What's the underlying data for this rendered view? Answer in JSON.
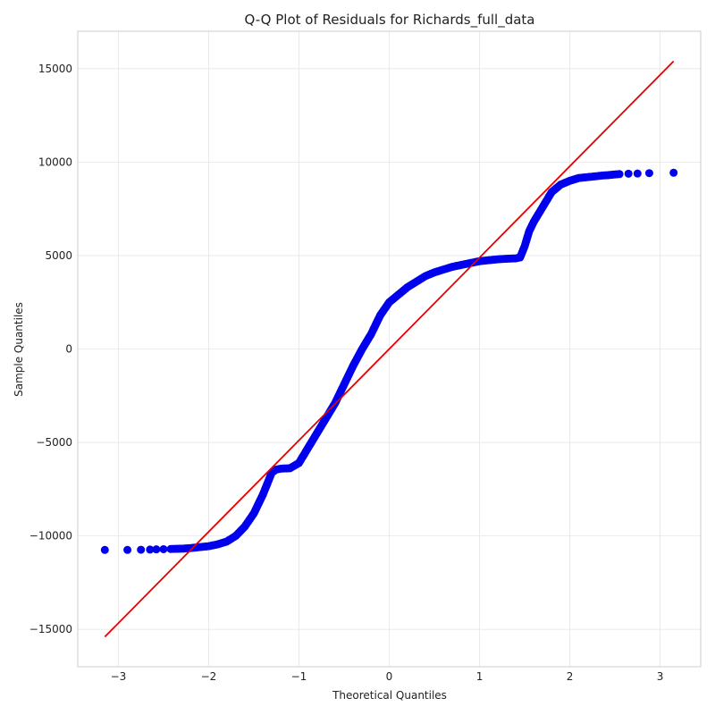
{
  "chart_data": {
    "type": "scatter",
    "title": "Q-Q Plot of Residuals for Richards_full_data",
    "xlabel": "Theoretical Quantiles",
    "ylabel": "Sample Quantiles",
    "xlim": [
      -3.45,
      3.45
    ],
    "ylim": [
      -17000,
      17000
    ],
    "xticks": [
      -3,
      -2,
      -1,
      0,
      1,
      2,
      3
    ],
    "xtick_labels": [
      "−3",
      "−2",
      "−1",
      "0",
      "1",
      "2",
      "3"
    ],
    "yticks": [
      -15000,
      -10000,
      -5000,
      0,
      5000,
      10000,
      15000
    ],
    "ytick_labels": [
      "−15000",
      "−10000",
      "−5000",
      "0",
      "5000",
      "10000",
      "15000"
    ],
    "grid": true,
    "series": [
      {
        "kind": "points",
        "color": "#0000ee",
        "x": [
          -3.15,
          -2.9,
          -2.75,
          -2.65,
          -2.58,
          -2.5,
          -2.42,
          -2.35,
          -2.28,
          -2.2,
          -2.1,
          -2.0,
          -1.9,
          -1.8,
          -1.7,
          -1.6,
          -1.5,
          -1.4,
          -1.35,
          -1.3,
          -1.25,
          -1.2,
          -1.1,
          -1.0,
          -0.9,
          -0.8,
          -0.7,
          -0.6,
          -0.5,
          -0.4,
          -0.3,
          -0.2,
          -0.1,
          0.0,
          0.1,
          0.2,
          0.3,
          0.4,
          0.5,
          0.6,
          0.7,
          0.8,
          0.9,
          1.0,
          1.1,
          1.2,
          1.3,
          1.35,
          1.4,
          1.45,
          1.5,
          1.55,
          1.6,
          1.7,
          1.8,
          1.9,
          2.0,
          2.1,
          2.2,
          2.3,
          2.35,
          2.42,
          2.48,
          2.55,
          2.65,
          2.75,
          2.88,
          3.15
        ],
        "y": [
          -10750,
          -10750,
          -10740,
          -10730,
          -10720,
          -10710,
          -10700,
          -10690,
          -10680,
          -10650,
          -10600,
          -10550,
          -10450,
          -10300,
          -10000,
          -9500,
          -8800,
          -7800,
          -7200,
          -6600,
          -6450,
          -6400,
          -6380,
          -6100,
          -5300,
          -4500,
          -3700,
          -2900,
          -1900,
          -900,
          0,
          800,
          1800,
          2500,
          2900,
          3300,
          3600,
          3900,
          4100,
          4250,
          4400,
          4500,
          4600,
          4700,
          4750,
          4800,
          4830,
          4840,
          4850,
          4900,
          5500,
          6300,
          6800,
          7600,
          8400,
          8800,
          9000,
          9150,
          9200,
          9250,
          9280,
          9300,
          9330,
          9360,
          9380,
          9390,
          9410,
          9430
        ]
      },
      {
        "kind": "line",
        "color": "#e60000",
        "x": [
          -3.15,
          3.15
        ],
        "y": [
          -15400,
          15400
        ]
      }
    ]
  }
}
